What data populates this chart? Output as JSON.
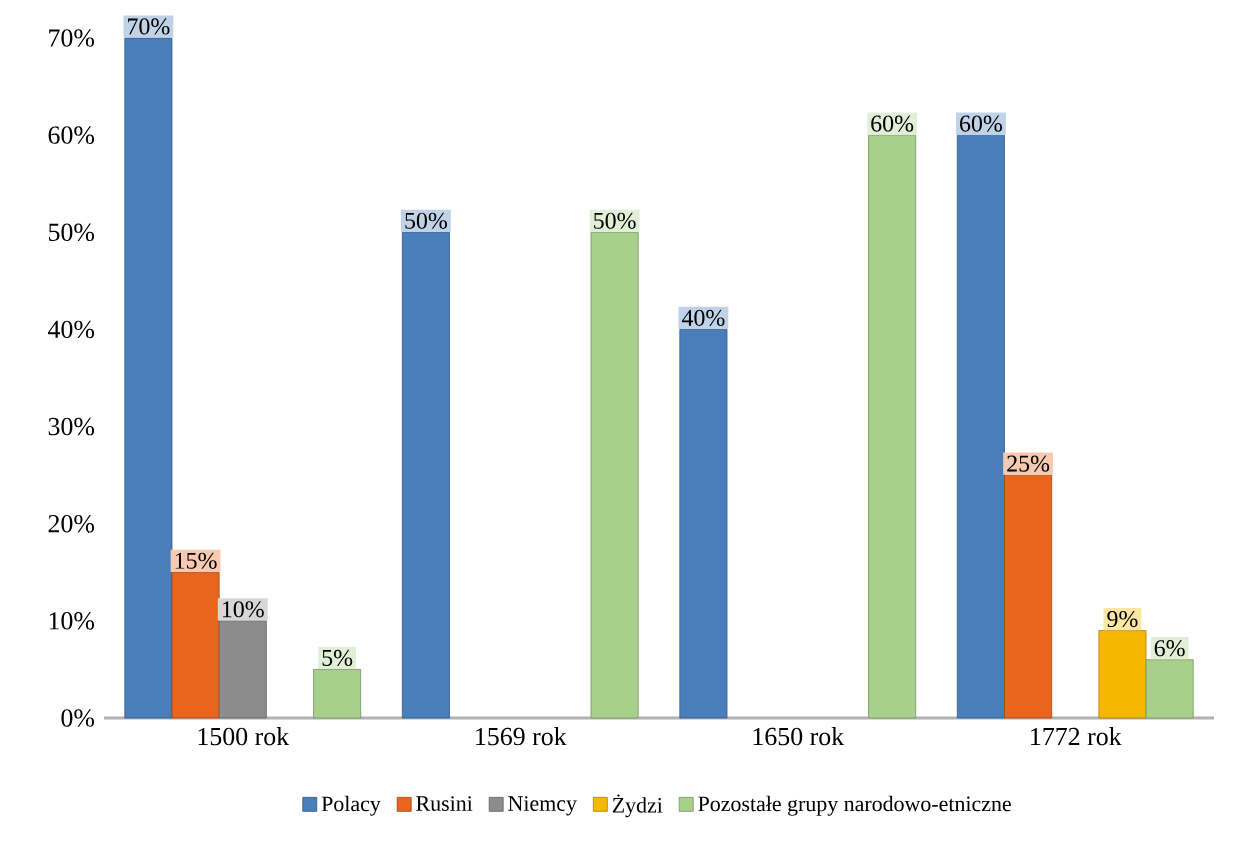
{
  "chart_data": {
    "type": "bar",
    "categories": [
      "1500 rok",
      "1569 rok",
      "1650 rok",
      "1772 rok"
    ],
    "series": [
      {
        "name": "Polacy",
        "color": "#4a7ebb",
        "values": [
          70,
          50,
          40,
          60
        ],
        "value_labels": [
          "70%",
          "50%",
          "40%",
          "60%"
        ]
      },
      {
        "name": "Rusini",
        "color": "#e8661c",
        "values": [
          15,
          null,
          null,
          25
        ],
        "value_labels": [
          "15%",
          null,
          null,
          "25%"
        ]
      },
      {
        "name": "Niemcy",
        "color": "#8c8c8c",
        "values": [
          10,
          null,
          null,
          null
        ],
        "value_labels": [
          "10%",
          null,
          null,
          null
        ]
      },
      {
        "name": "Żydzi",
        "color": "#f5b800",
        "values": [
          null,
          null,
          null,
          9
        ],
        "value_labels": [
          null,
          null,
          null,
          "9%"
        ]
      },
      {
        "name": "Pozostałe grupy narodowo-etniczne",
        "color": "#a8d08d",
        "values": [
          5,
          50,
          60,
          6
        ],
        "value_labels": [
          "5%",
          "50%",
          "60%",
          "6%"
        ]
      }
    ],
    "ylim": [
      0,
      70
    ],
    "yticks": [
      {
        "value": 0,
        "label": "0%"
      },
      {
        "value": 10,
        "label": "10%"
      },
      {
        "value": 20,
        "label": "20%"
      },
      {
        "value": 30,
        "label": "30%"
      },
      {
        "value": 40,
        "label": "40%"
      },
      {
        "value": 50,
        "label": "50%"
      },
      {
        "value": 60,
        "label": "60%"
      },
      {
        "value": 70,
        "label": "70%"
      }
    ],
    "legend": "bottom"
  }
}
